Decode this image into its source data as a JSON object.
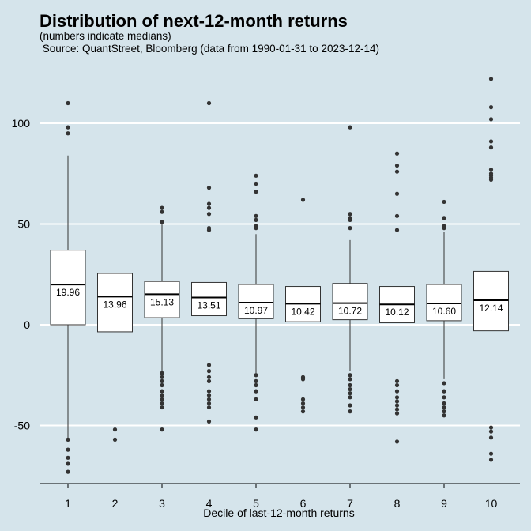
{
  "chart_data": {
    "type": "boxplot",
    "title": "Distribution of next-12-month returns",
    "subtitle": "(numbers indicate medians)",
    "source": " Source: QuantStreet, Bloomberg (data from 1990-01-31 to 2023-12-14)",
    "xlabel": "Decile of last-12-month returns",
    "ylabel": "",
    "ylim": [
      -78,
      125
    ],
    "yticks": [
      -50,
      0,
      50,
      100
    ],
    "grid": "horizontal",
    "categories": [
      "1",
      "2",
      "3",
      "4",
      "5",
      "6",
      "7",
      "8",
      "9",
      "10"
    ],
    "boxes": [
      {
        "q1": 0,
        "median": 19.96,
        "q3": 37,
        "whisker_low": -57,
        "whisker_high": 84,
        "outliers": [
          110,
          98,
          95,
          -57,
          -62,
          -66,
          -69,
          -73
        ],
        "label": "19.96"
      },
      {
        "q1": -3.5,
        "median": 13.96,
        "q3": 25.5,
        "whisker_low": -46,
        "whisker_high": 67,
        "outliers": [
          -52,
          -57
        ],
        "label": "13.96"
      },
      {
        "q1": 3.5,
        "median": 15.13,
        "q3": 21.5,
        "whisker_low": -23,
        "whisker_high": 51,
        "outliers": [
          58,
          56,
          51,
          -24,
          -26,
          -28,
          -30,
          -33,
          -35,
          -37,
          -39,
          -41,
          -52
        ],
        "label": "15.13"
      },
      {
        "q1": 4.5,
        "median": 13.51,
        "q3": 21,
        "whisker_low": -18,
        "whisker_high": 46,
        "outliers": [
          110,
          68,
          60,
          58,
          55,
          48,
          47,
          -20,
          -23,
          -26,
          -28,
          -33,
          -35,
          -37,
          -39,
          -41,
          -48
        ],
        "label": "13.51"
      },
      {
        "q1": 3,
        "median": 10.97,
        "q3": 20,
        "whisker_low": -24,
        "whisker_high": 45,
        "outliers": [
          74,
          70,
          66,
          54,
          52,
          49,
          48,
          -25,
          -28,
          -30,
          -33,
          -37,
          -46,
          -52
        ],
        "label": "10.97"
      },
      {
        "q1": 1.5,
        "median": 10.42,
        "q3": 19,
        "whisker_low": -22,
        "whisker_high": 47,
        "outliers": [
          62,
          -26,
          -27,
          -37,
          -39,
          -41,
          -43
        ],
        "label": "10.42"
      },
      {
        "q1": 2.5,
        "median": 10.72,
        "q3": 20.5,
        "whisker_low": -23,
        "whisker_high": 42,
        "outliers": [
          98,
          55,
          53,
          52,
          48,
          -25,
          -27,
          -30,
          -32,
          -34,
          -36,
          -40,
          -43
        ],
        "label": "10.72"
      },
      {
        "q1": 1,
        "median": 10.12,
        "q3": 19,
        "whisker_low": -26,
        "whisker_high": 44,
        "outliers": [
          85,
          79,
          76,
          65,
          54,
          47,
          -28,
          -30,
          -33,
          -36,
          -38,
          -40,
          -42,
          -44,
          -58
        ],
        "label": "10.12"
      },
      {
        "q1": 2,
        "median": 10.6,
        "q3": 20,
        "whisker_low": -27,
        "whisker_high": 46,
        "outliers": [
          61,
          53,
          49,
          48,
          -29,
          -33,
          -36,
          -39,
          -41,
          -43,
          -45
        ],
        "label": "10.60"
      },
      {
        "q1": -3,
        "median": 12.14,
        "q3": 26.5,
        "whisker_low": -46,
        "whisker_high": 70,
        "outliers": [
          122,
          108,
          102,
          91,
          88,
          77,
          75,
          74,
          73,
          72,
          -51,
          -53,
          -56,
          -64,
          -67
        ],
        "label": "12.14"
      }
    ]
  },
  "colors": {
    "background": "#d5e4eb",
    "gridline": "#ffffff",
    "box_fill": "#ffffff",
    "box_stroke": "#333333",
    "median_line": "#000000",
    "outlier": "#333333"
  }
}
